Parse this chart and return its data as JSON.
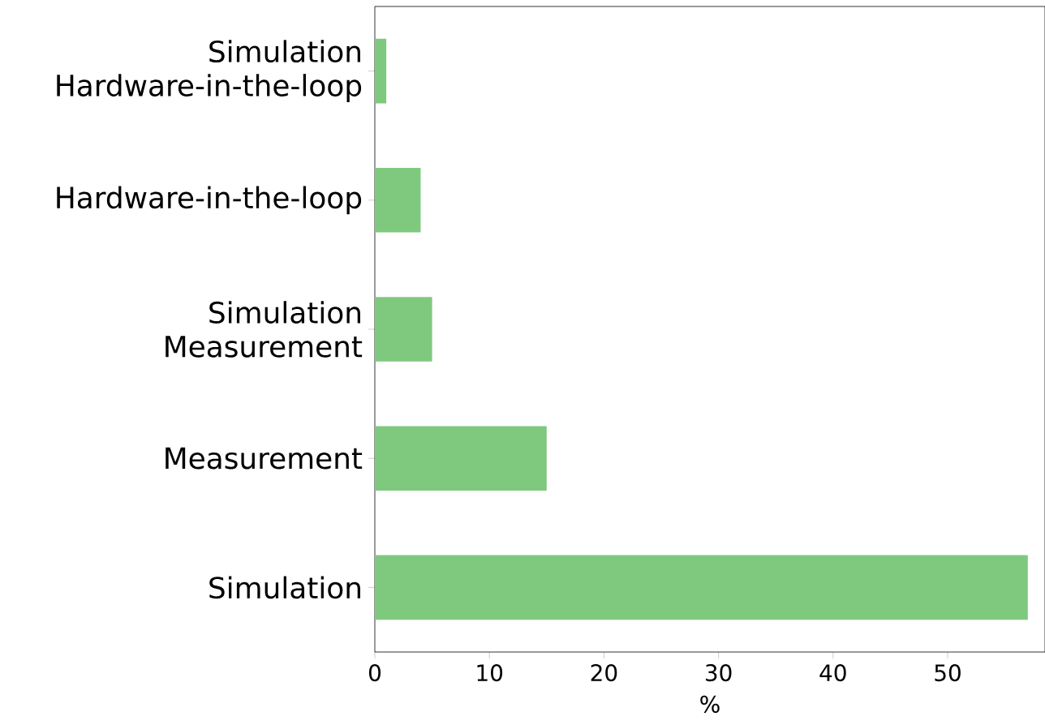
{
  "chart_data": {
    "type": "bar",
    "orientation": "horizontal",
    "xlabel": "%",
    "categories": [
      "Simulation Hardware-in-the-loop",
      "Hardware-in-the-loop",
      "Simulation Measurement",
      "Measurement",
      "Simulation"
    ],
    "values": [
      1,
      4,
      5,
      15,
      57
    ],
    "color": "#7fc97f",
    "xlim": [
      0,
      58.5
    ],
    "xticks": [
      0,
      10,
      20,
      30,
      40,
      50
    ],
    "grid": false
  }
}
